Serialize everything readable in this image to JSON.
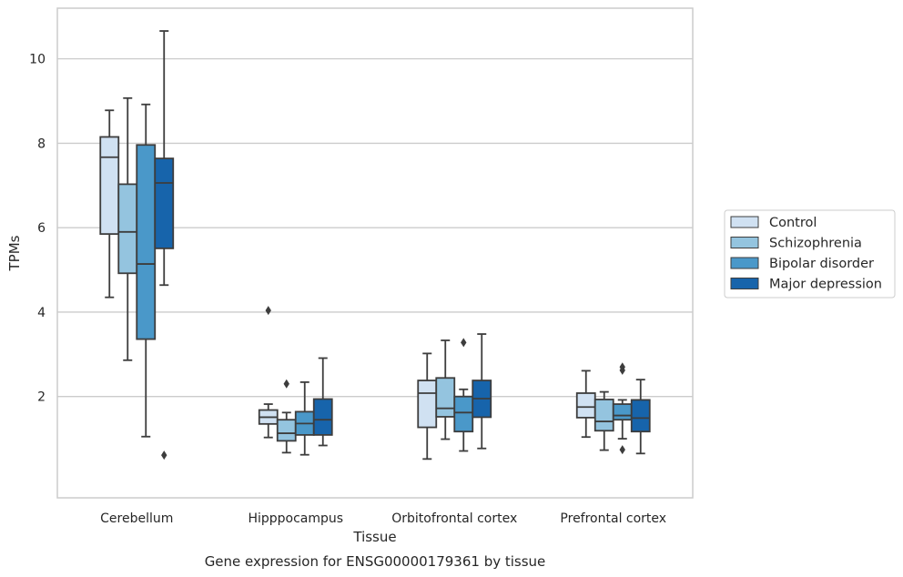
{
  "chart_data": {
    "type": "boxplot",
    "title": "",
    "caption": "Gene expression for ENSG00000179361 by tissue",
    "xlabel": "Tissue",
    "ylabel": "TPMs",
    "ylim": [
      -0.4,
      11.2
    ],
    "yticks": [
      2,
      4,
      6,
      8,
      10
    ],
    "grid": "horizontal",
    "legend_position": "right",
    "categories": [
      "Cerebellum",
      "Hipppocampus",
      "Orbitofrontal cortex",
      "Prefrontal cortex"
    ],
    "series": [
      {
        "name": "Control",
        "color": "#d0e1f2",
        "boxes": [
          {
            "whislo": 4.35,
            "q1": 5.85,
            "med": 7.67,
            "q3": 8.15,
            "whishi": 8.78,
            "fliers": []
          },
          {
            "whislo": 1.03,
            "q1": 1.35,
            "med": 1.51,
            "q3": 1.68,
            "whishi": 1.82,
            "fliers": [
              4.04
            ]
          },
          {
            "whislo": 0.52,
            "q1": 1.27,
            "med": 2.08,
            "q3": 2.38,
            "whishi": 3.02,
            "fliers": []
          },
          {
            "whislo": 1.04,
            "q1": 1.5,
            "med": 1.75,
            "q3": 2.08,
            "whishi": 2.61,
            "fliers": []
          }
        ]
      },
      {
        "name": "Schizophrenia",
        "color": "#94c4df",
        "boxes": [
          {
            "whislo": 2.86,
            "q1": 4.92,
            "med": 5.9,
            "q3": 7.03,
            "whishi": 9.07,
            "fliers": []
          },
          {
            "whislo": 0.67,
            "q1": 0.95,
            "med": 1.13,
            "q3": 1.45,
            "whishi": 1.62,
            "fliers": [
              2.3
            ]
          },
          {
            "whislo": 0.99,
            "q1": 1.52,
            "med": 1.72,
            "q3": 2.44,
            "whishi": 3.33,
            "fliers": []
          },
          {
            "whislo": 0.73,
            "q1": 1.19,
            "med": 1.41,
            "q3": 1.93,
            "whishi": 2.11,
            "fliers": []
          }
        ]
      },
      {
        "name": "Bipolar disorder",
        "color": "#4a98c9",
        "boxes": [
          {
            "whislo": 1.05,
            "q1": 3.36,
            "med": 5.14,
            "q3": 7.96,
            "whishi": 8.92,
            "fliers": []
          },
          {
            "whislo": 0.62,
            "q1": 1.09,
            "med": 1.36,
            "q3": 1.64,
            "whishi": 2.34,
            "fliers": []
          },
          {
            "whislo": 0.71,
            "q1": 1.17,
            "med": 1.62,
            "q3": 2.0,
            "whishi": 2.17,
            "fliers": [
              3.28
            ]
          },
          {
            "whislo": 1.0,
            "q1": 1.45,
            "med": 1.55,
            "q3": 1.82,
            "whishi": 1.92,
            "fliers": [
              0.74,
              2.62,
              2.7
            ]
          }
        ]
      },
      {
        "name": "Major depression",
        "color": "#1764ab",
        "boxes": [
          {
            "whislo": 4.64,
            "q1": 5.51,
            "med": 7.06,
            "q3": 7.64,
            "whishi": 10.66,
            "fliers": [
              0.61
            ]
          },
          {
            "whislo": 0.84,
            "q1": 1.09,
            "med": 1.45,
            "q3": 1.94,
            "whishi": 2.91,
            "fliers": []
          },
          {
            "whislo": 0.77,
            "q1": 1.51,
            "med": 1.95,
            "q3": 2.38,
            "whishi": 3.48,
            "fliers": []
          },
          {
            "whislo": 0.65,
            "q1": 1.17,
            "med": 1.49,
            "q3": 1.92,
            "whishi": 2.4,
            "fliers": []
          }
        ]
      }
    ]
  },
  "colors": {
    "grid": "#cccccc",
    "frame": "#cccccc",
    "line": "#3d3d3d"
  }
}
